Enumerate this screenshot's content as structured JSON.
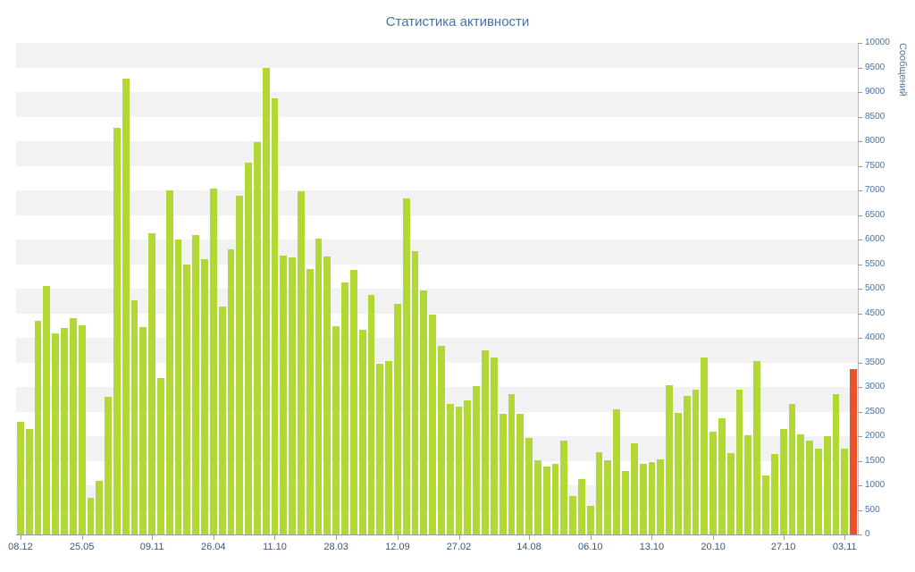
{
  "chart_data": {
    "type": "bar",
    "title": "Статистика активности",
    "xlabel": "",
    "ylabel": "Сообщений",
    "ylim": [
      0,
      10000
    ],
    "ytick_step": 500,
    "grid": "alternating-horizontal-bands",
    "legend": "none",
    "y_axis_side": "right",
    "highlight_last_bar": true,
    "values": [
      2300,
      2150,
      4350,
      5050,
      4100,
      4200,
      4400,
      4250,
      750,
      1100,
      2800,
      8270,
      9270,
      4760,
      4220,
      6130,
      3180,
      7000,
      6000,
      5500,
      6090,
      5600,
      7030,
      4640,
      5800,
      6900,
      7560,
      7980,
      9500,
      8870,
      5670,
      5640,
      6980,
      5400,
      6020,
      5650,
      4240,
      5130,
      5380,
      4160,
      4870,
      3470,
      3530,
      4690,
      6840,
      5760,
      4960,
      4470,
      3840,
      2650,
      2600,
      2730,
      3020,
      3750,
      3600,
      2450,
      2850,
      2450,
      1960,
      1510,
      1380,
      1440,
      1910,
      780,
      1130,
      580,
      1670,
      1510,
      2550,
      1290,
      1850,
      1440,
      1470,
      1530,
      3040,
      2470,
      2820,
      2950,
      3600,
      2090,
      2360,
      1650,
      2950,
      2020,
      3530,
      1200,
      1640,
      2150,
      2650,
      2040,
      1910,
      1750,
      2000,
      2850,
      1750,
      3360
    ],
    "x_tick_labels": [
      "08.12",
      "25.05",
      "09.11",
      "26.04",
      "11.10",
      "28.03",
      "12.09",
      "27.02",
      "14.08",
      "06.10",
      "13.10",
      "20.10",
      "27.10",
      "03.11"
    ],
    "x_tick_indices": [
      0,
      7,
      15,
      22,
      29,
      36,
      43,
      50,
      58,
      65,
      72,
      79,
      87,
      94
    ],
    "colors": {
      "bar": "#b2d836",
      "bar_highlight": "#e8532a",
      "band": "#f2f2f2",
      "background": "#ffffff",
      "title_text": "#4572a7",
      "y_axis_label": "#4572a7",
      "x_axis_label": "#3e576f",
      "y_axis_title": "#4d759e"
    }
  }
}
